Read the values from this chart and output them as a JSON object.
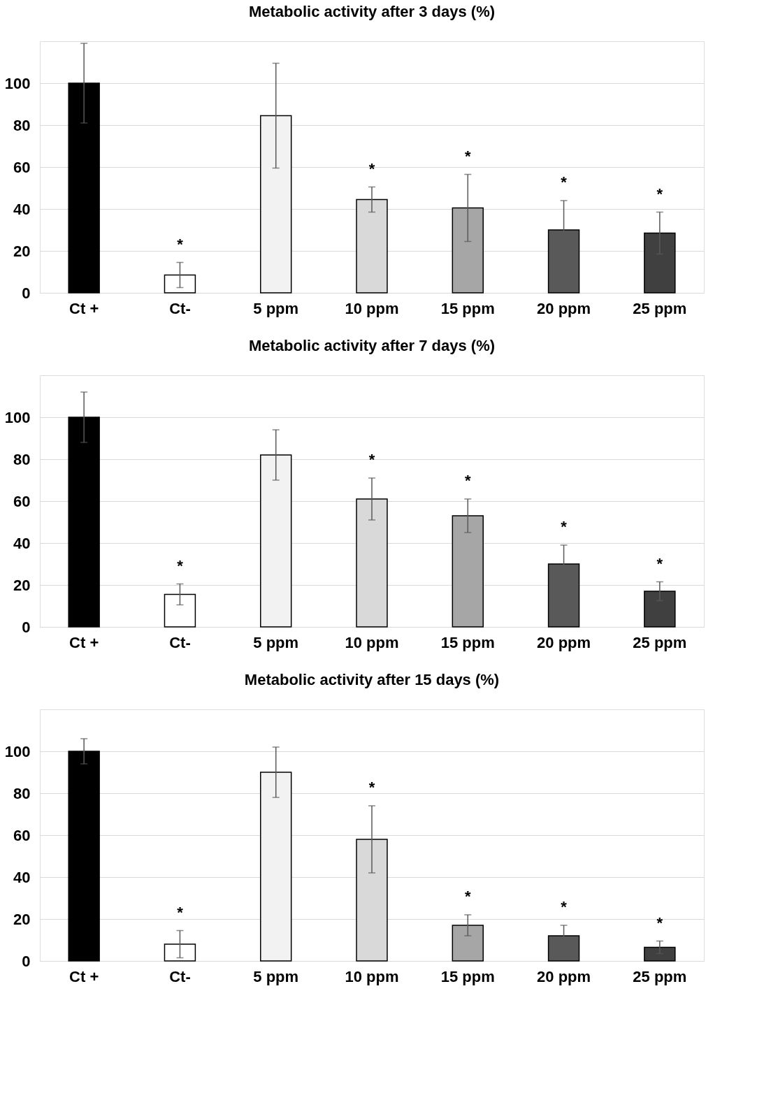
{
  "chart_data": [
    {
      "type": "bar",
      "title": "Metabolic activity after 3 days (%)",
      "categories": [
        "Ct +",
        "Ct-",
        "5 ppm",
        "10 ppm",
        "15 ppm",
        "20 ppm",
        "25 ppm"
      ],
      "values": [
        100,
        8.5,
        84.5,
        44.5,
        40.5,
        30,
        28.5
      ],
      "errors": [
        19,
        6,
        25,
        6,
        16,
        14,
        10
      ],
      "colors": [
        "#000000",
        "#ffffff",
        "#f2f2f2",
        "#d9d9d9",
        "#a6a6a6",
        "#595959",
        "#404040"
      ],
      "ylim": [
        0,
        120
      ],
      "yticks": [
        0,
        20,
        40,
        60,
        80,
        100
      ],
      "grid": "y",
      "value_labels": [
        null,
        "*",
        null,
        "*",
        "*",
        "*",
        "*"
      ]
    },
    {
      "type": "bar",
      "title": "Metabolic activity after 7 days (%)",
      "categories": [
        "Ct +",
        "Ct-",
        "5 ppm",
        "10 ppm",
        "15 ppm",
        "20 ppm",
        "25 ppm"
      ],
      "values": [
        100,
        15.5,
        82,
        61,
        53,
        30,
        17
      ],
      "errors": [
        12,
        5,
        12,
        10,
        8,
        9,
        4.5
      ],
      "colors": [
        "#000000",
        "#ffffff",
        "#f2f2f2",
        "#d9d9d9",
        "#a6a6a6",
        "#595959",
        "#404040"
      ],
      "ylim": [
        0,
        120
      ],
      "yticks": [
        0,
        20,
        40,
        60,
        80,
        100
      ],
      "grid": "y",
      "value_labels": [
        null,
        "*",
        null,
        "*",
        "*",
        "*",
        "*"
      ]
    },
    {
      "type": "bar",
      "title": "Metabolic activity after 15 days (%)",
      "categories": [
        "Ct +",
        "Ct-",
        "5 ppm",
        "10 ppm",
        "15 ppm",
        "20 ppm",
        "25 ppm"
      ],
      "values": [
        100,
        8,
        90,
        58,
        17,
        12,
        6.5
      ],
      "errors": [
        6,
        6.5,
        12,
        16,
        5,
        5,
        3
      ],
      "colors": [
        "#000000",
        "#ffffff",
        "#f2f2f2",
        "#d9d9d9",
        "#a6a6a6",
        "#595959",
        "#404040"
      ],
      "ylim": [
        0,
        120
      ],
      "yticks": [
        0,
        20,
        40,
        60,
        80,
        100
      ],
      "grid": "y",
      "value_labels": [
        null,
        "*",
        null,
        "*",
        "*",
        "*",
        "*"
      ]
    }
  ]
}
